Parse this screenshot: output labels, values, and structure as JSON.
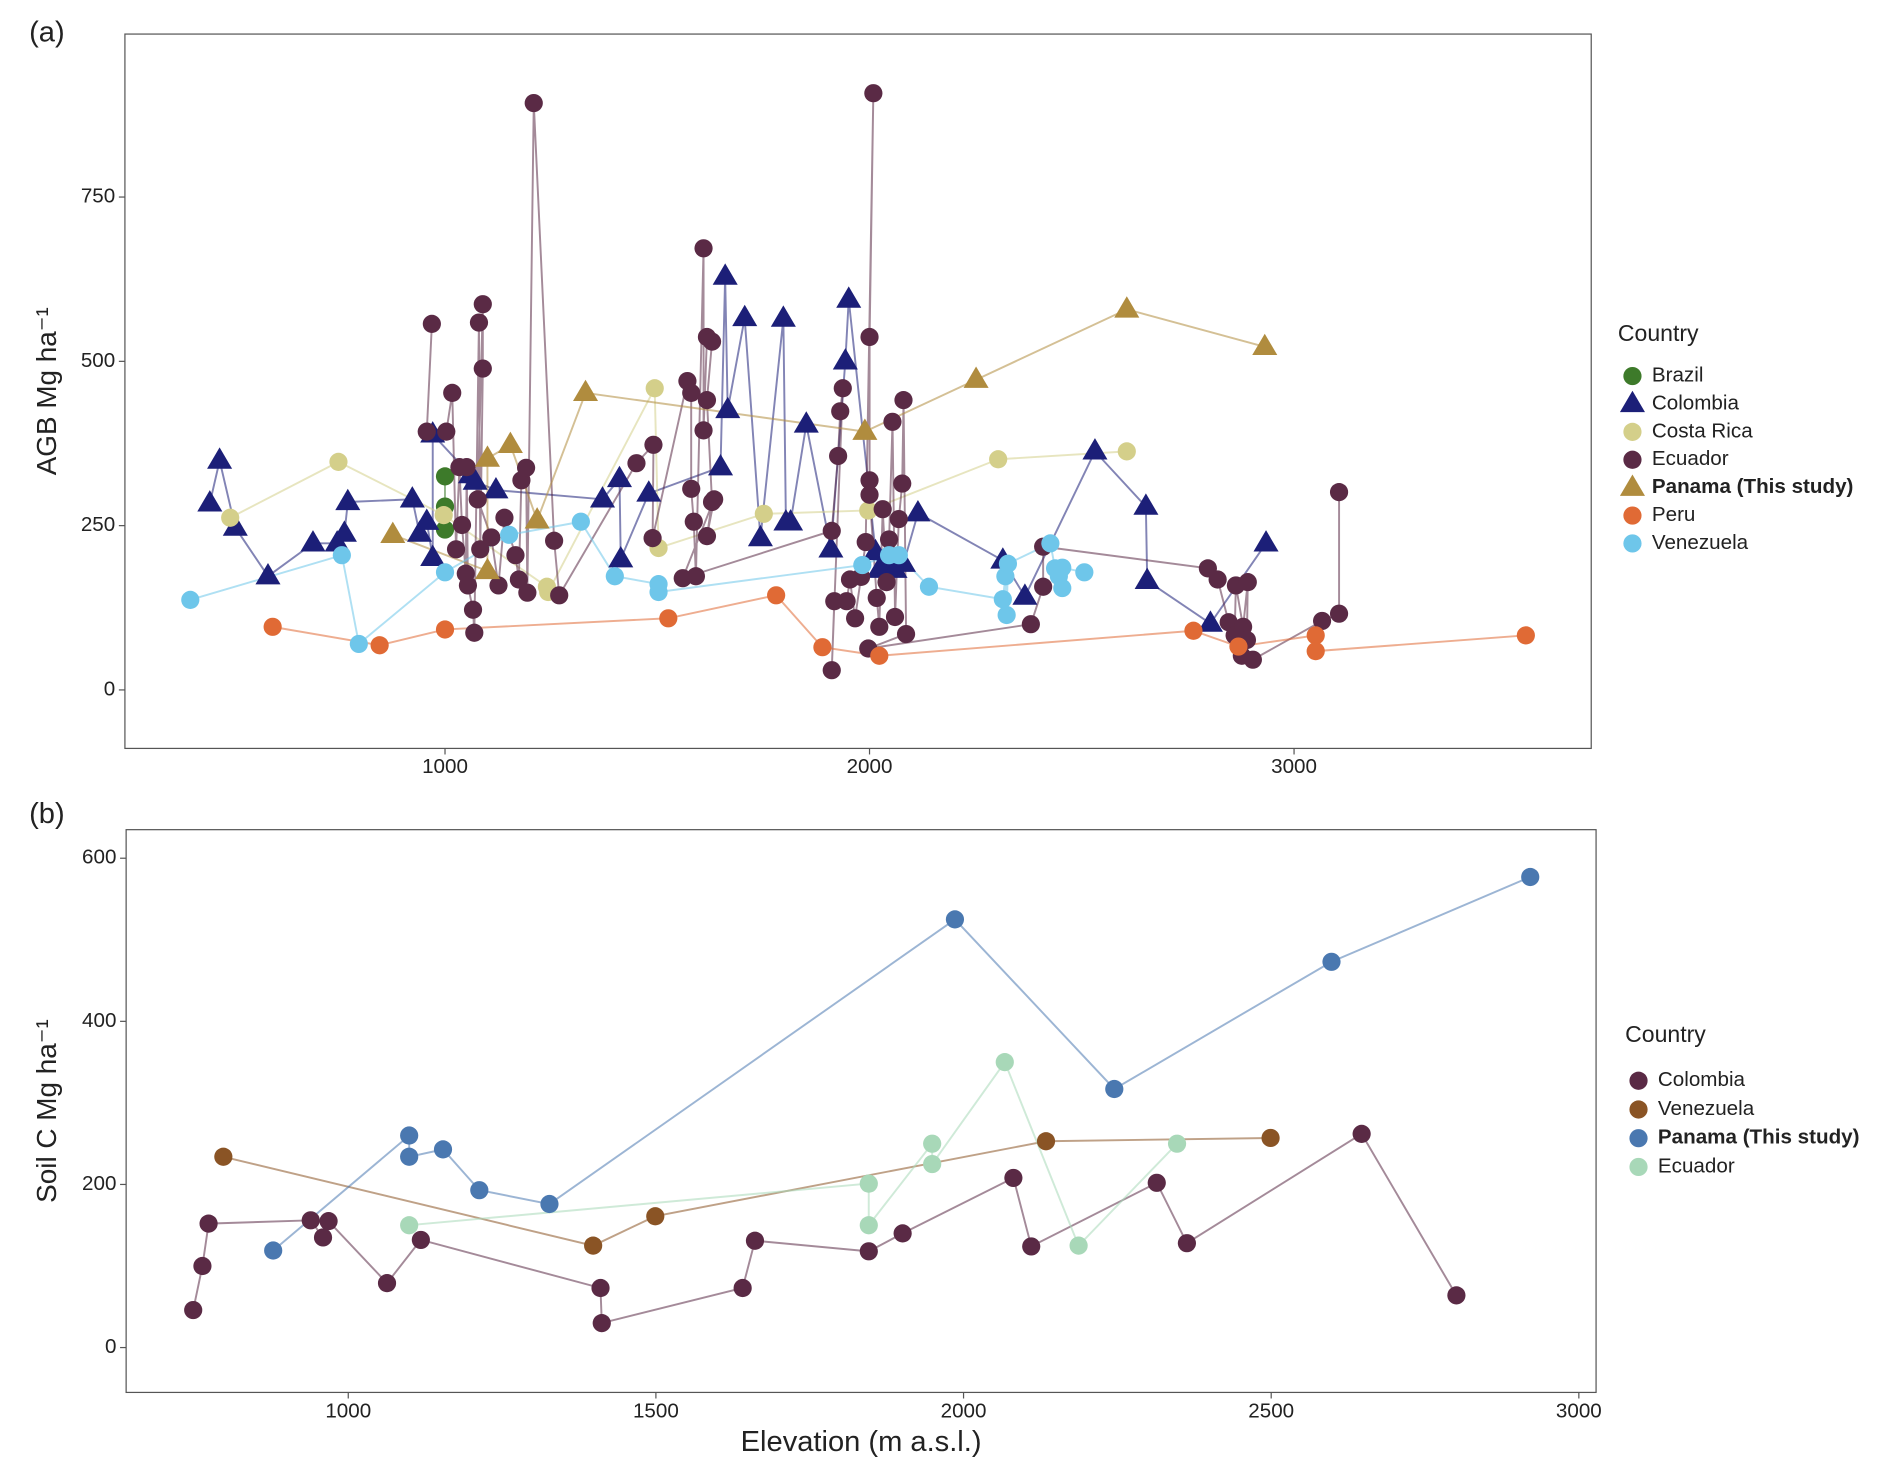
{
  "chart_data": [
    {
      "type": "scatter",
      "panel_label": "(a)",
      "y_label": "AGB Mg ha⁻¹",
      "legend_title": "Country",
      "xlim": [
        246,
        3700
      ],
      "ylim": [
        -89,
        998
      ],
      "xticks": [
        1000,
        2000,
        3000
      ],
      "yticks": [
        0,
        250,
        500,
        750
      ],
      "grid": false,
      "legend": "right",
      "series": [
        {
          "name": "Brazil",
          "color": "#3d7a2a",
          "marker": "circle",
          "x": [
            1000,
            1000,
            1000
          ],
          "values": [
            325,
            279,
            244
          ]
        },
        {
          "name": "Colombia",
          "color": "#1c1f78",
          "marker": "triangle",
          "x": [
            446,
            469,
            506,
            583,
            689,
            746,
            763,
            771,
            923,
            940,
            957,
            971,
            971,
            1060,
            1071,
            1120,
            1371,
            1411,
            1414,
            1480,
            1649,
            1660,
            1666,
            1706,
            1743,
            1797,
            1803,
            1814,
            1851,
            1909,
            1943,
            1951,
            2014,
            2023,
            2037,
            2060,
            2080,
            2114,
            2314,
            2366,
            2531,
            2651,
            2654,
            2803,
            2934
          ],
          "values": [
            284,
            349,
            247,
            173,
            223,
            223,
            238,
            286,
            290,
            238,
            256,
            201,
            389,
            327,
            317,
            304,
            290,
            321,
            199,
            299,
            339,
            629,
            426,
            566,
            231,
            565,
            255,
            255,
            404,
            214,
            500,
            594,
            210,
            183,
            190,
            183,
            192,
            269,
            197,
            142,
            363,
            279,
            166,
            101,
            223
          ]
        },
        {
          "name": "Costa Rica",
          "color": "#d4cf8a",
          "marker": "circle",
          "x": [
            494,
            749,
            997,
            1240,
            1243,
            1494,
            1503,
            1751,
            1997,
            2303,
            2606
          ],
          "values": [
            262,
            347,
            266,
            157,
            149,
            459,
            216,
            268,
            273,
            351,
            363
          ]
        },
        {
          "name": "Ecuador",
          "color": "#5a2a45",
          "marker": "circle",
          "x": [
            969,
            957,
            1003,
            1017,
            1026,
            1034,
            1040,
            1049,
            1051,
            1054,
            1066,
            1069,
            1080,
            1083,
            1089,
            1089,
            1077,
            1109,
            1126,
            1140,
            1166,
            1174,
            1180,
            1191,
            1194,
            1209,
            1257,
            1269,
            1451,
            1491,
            1489,
            1571,
            1580,
            1580,
            1586,
            1591,
            1609,
            1609,
            1617,
            1629,
            1617,
            1629,
            1617,
            1634,
            1560,
            1911,
            1926,
            1931,
            1937,
            1911,
            1917,
            1946,
            1954,
            1966,
            1980,
            1991,
            2009,
            2000,
            2000,
            2000,
            2017,
            2023,
            2031,
            2040,
            2046,
            2054,
            2060,
            2069,
            2077,
            2080,
            2086,
            1997,
            2380,
            2409,
            2409,
            2797,
            2820,
            2846,
            2860,
            2863,
            2880,
            2891,
            2889,
            2877,
            2903,
            3066,
            3106,
            3106
          ],
          "values": [
            557,
            393,
            393,
            452,
            214,
            339,
            251,
            177,
            339,
            159,
            122,
            87,
            559,
            214,
            489,
            587,
            290,
            232,
            159,
            262,
            205,
            168,
            319,
            338,
            148,
            893,
            227,
            144,
            345,
            373,
            231,
            470,
            452,
            306,
            256,
            173,
            672,
            395,
            537,
            530,
            441,
            286,
            234,
            290,
            170,
            242,
            356,
            424,
            459,
            30,
            135,
            135,
            168,
            109,
            172,
            225,
            908,
            537,
            319,
            297,
            140,
            96,
            275,
            164,
            229,
            408,
            111,
            260,
            314,
            441,
            85,
            63,
            100,
            157,
            218,
            185,
            168,
            103,
            83,
            159,
            96,
            164,
            76,
            52,
            46,
            105,
            116,
            301
          ]
        },
        {
          "name": "Panama (This study)",
          "color": "#b08c3e",
          "marker": "triangle",
          "font_weight": "bold",
          "x": [
            877,
            1100,
            1100,
            1154,
            1217,
            1331,
            1989,
            2251,
            2606,
            2931
          ],
          "values": [
            236,
            181,
            352,
            373,
            258,
            452,
            393,
            472,
            579,
            522
          ]
        },
        {
          "name": "Peru",
          "color": "#e06a35",
          "marker": "circle",
          "x": [
            594,
            846,
            1000,
            1526,
            1780,
            1889,
            2023,
            2763,
            2869,
            3051,
            3051,
            3546
          ],
          "values": [
            96,
            68,
            92,
            109,
            144,
            65,
            52,
            90,
            66,
            83,
            59,
            83
          ]
        },
        {
          "name": "Venezuela",
          "color": "#6ec6ea",
          "marker": "circle",
          "x": [
            400,
            757,
            797,
            1000,
            1151,
            1320,
            1400,
            1503,
            1503,
            1983,
            2046,
            2069,
            2140,
            2314,
            2320,
            2323,
            2326,
            2426,
            2437,
            2446,
            2454,
            2454,
            2506
          ],
          "values": [
            137,
            205,
            70,
            179,
            236,
            256,
            173,
            161,
            149,
            190,
            205,
            205,
            157,
            138,
            173,
            114,
            192,
            223,
            185,
            173,
            155,
            186,
            179
          ]
        }
      ]
    },
    {
      "type": "scatter",
      "panel_label": "(b)",
      "y_label": "Soil C Mg ha⁻¹",
      "x_label": "Elevation (m a.s.l.)",
      "legend_title": "Country",
      "xlim": [
        639,
        3028
      ],
      "ylim": [
        -55,
        635
      ],
      "xticks": [
        1000,
        1500,
        2000,
        2500,
        3000
      ],
      "yticks": [
        0,
        200,
        400,
        600
      ],
      "grid": false,
      "legend": "right",
      "series": [
        {
          "name": "Colombia",
          "color": "#5a2a45",
          "marker": "circle",
          "x": [
            748,
            763,
            773,
            939,
            959,
            968,
            1063,
            1118,
            1410,
            1412,
            1641,
            1661,
            1846,
            1901,
            2081,
            2110,
            2314,
            2363,
            2647,
            2801
          ],
          "values": [
            46,
            100,
            152,
            156,
            135,
            155,
            79,
            132,
            73,
            30,
            73,
            131,
            118,
            140,
            208,
            124,
            202,
            128,
            262,
            64
          ]
        },
        {
          "name": "Venezuela",
          "color": "#8a5425",
          "marker": "circle",
          "x": [
            797,
            1398,
            1499,
            2134,
            2499
          ],
          "values": [
            234,
            125,
            161,
            253,
            257
          ]
        },
        {
          "name": "Panama (This study)",
          "color": "#4a78b0",
          "marker": "circle",
          "font_weight": "bold",
          "x": [
            878,
            1099,
            1099,
            1154,
            1213,
            1327,
            1986,
            2245,
            2598,
            2921
          ],
          "values": [
            119,
            260,
            234,
            243,
            193,
            176,
            525,
            317,
            473,
            577
          ]
        },
        {
          "name": "Ecuador",
          "color": "#a8d8b8",
          "marker": "circle",
          "x": [
            1099,
            1846,
            1846,
            1949,
            1949,
            2067,
            2187,
            2347
          ],
          "values": [
            150,
            201,
            150,
            250,
            225,
            350,
            125,
            250
          ]
        }
      ]
    }
  ]
}
